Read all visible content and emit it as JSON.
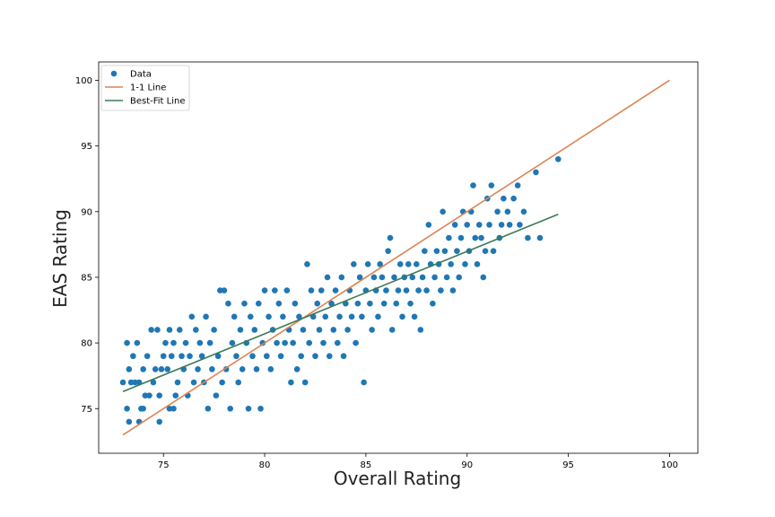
{
  "chart_data": {
    "type": "scatter",
    "xlabel": "Overall Rating",
    "ylabel": "EAS Rating",
    "xlim": [
      71.8,
      101.4
    ],
    "ylim": [
      71.6,
      101.4
    ],
    "xticks": [
      "75",
      "80",
      "85",
      "90",
      "95",
      "100"
    ],
    "yticks": [
      "75",
      "80",
      "85",
      "90",
      "95",
      "100"
    ],
    "grid": false,
    "legend_position": "top-left",
    "series": [
      {
        "name": "Data",
        "kind": "scatter",
        "color": "#1f77b4",
        "points": [
          [
            73.0,
            77
          ],
          [
            73.2,
            75
          ],
          [
            73.2,
            80
          ],
          [
            73.3,
            74
          ],
          [
            73.3,
            78
          ],
          [
            73.4,
            77
          ],
          [
            73.5,
            79
          ],
          [
            73.6,
            77
          ],
          [
            73.7,
            80
          ],
          [
            73.8,
            74
          ],
          [
            73.8,
            77
          ],
          [
            73.9,
            75
          ],
          [
            74.0,
            75
          ],
          [
            74.0,
            78
          ],
          [
            74.1,
            76
          ],
          [
            74.2,
            79
          ],
          [
            74.3,
            76
          ],
          [
            74.4,
            81
          ],
          [
            74.5,
            77
          ],
          [
            74.6,
            78
          ],
          [
            74.7,
            81
          ],
          [
            74.8,
            74
          ],
          [
            74.8,
            76
          ],
          [
            74.9,
            78
          ],
          [
            75.0,
            79
          ],
          [
            75.1,
            80
          ],
          [
            75.2,
            78
          ],
          [
            75.3,
            75
          ],
          [
            75.3,
            81
          ],
          [
            75.4,
            79
          ],
          [
            75.5,
            75
          ],
          [
            75.5,
            80
          ],
          [
            75.6,
            76
          ],
          [
            75.7,
            77
          ],
          [
            75.8,
            81
          ],
          [
            75.9,
            79
          ],
          [
            76.0,
            78
          ],
          [
            76.1,
            80
          ],
          [
            76.2,
            76
          ],
          [
            76.3,
            79
          ],
          [
            76.4,
            82
          ],
          [
            76.5,
            77
          ],
          [
            76.6,
            81
          ],
          [
            76.7,
            78
          ],
          [
            76.8,
            80
          ],
          [
            76.9,
            79
          ],
          [
            77.0,
            77
          ],
          [
            77.1,
            82
          ],
          [
            77.2,
            75
          ],
          [
            77.3,
            80
          ],
          [
            77.4,
            78
          ],
          [
            77.5,
            81
          ],
          [
            77.6,
            76
          ],
          [
            77.7,
            79
          ],
          [
            77.8,
            84
          ],
          [
            77.9,
            77
          ],
          [
            78.0,
            84
          ],
          [
            78.1,
            78
          ],
          [
            78.2,
            83
          ],
          [
            78.3,
            75
          ],
          [
            78.4,
            80
          ],
          [
            78.5,
            82
          ],
          [
            78.6,
            79
          ],
          [
            78.7,
            77
          ],
          [
            78.8,
            81
          ],
          [
            78.9,
            78
          ],
          [
            79.0,
            83
          ],
          [
            79.1,
            80
          ],
          [
            79.2,
            75
          ],
          [
            79.3,
            82
          ],
          [
            79.4,
            79
          ],
          [
            79.5,
            81
          ],
          [
            79.6,
            78
          ],
          [
            79.7,
            83
          ],
          [
            79.8,
            75
          ],
          [
            79.9,
            80
          ],
          [
            80.0,
            84
          ],
          [
            80.1,
            79
          ],
          [
            80.2,
            82
          ],
          [
            80.3,
            78
          ],
          [
            80.4,
            81
          ],
          [
            80.5,
            84
          ],
          [
            80.6,
            80
          ],
          [
            80.7,
            83
          ],
          [
            80.8,
            79
          ],
          [
            80.9,
            82
          ],
          [
            81.0,
            80
          ],
          [
            81.1,
            84
          ],
          [
            81.2,
            81
          ],
          [
            81.3,
            77
          ],
          [
            81.4,
            80
          ],
          [
            81.5,
            83
          ],
          [
            81.6,
            78
          ],
          [
            81.7,
            82
          ],
          [
            81.8,
            79
          ],
          [
            81.9,
            81
          ],
          [
            82.0,
            77
          ],
          [
            82.1,
            86
          ],
          [
            82.2,
            80
          ],
          [
            82.3,
            84
          ],
          [
            82.4,
            82
          ],
          [
            82.5,
            79
          ],
          [
            82.6,
            83
          ],
          [
            82.7,
            81
          ],
          [
            82.8,
            84
          ],
          [
            82.9,
            80
          ],
          [
            83.0,
            82
          ],
          [
            83.1,
            85
          ],
          [
            83.2,
            79
          ],
          [
            83.3,
            83
          ],
          [
            83.4,
            81
          ],
          [
            83.5,
            84
          ],
          [
            83.6,
            80
          ],
          [
            83.7,
            82
          ],
          [
            83.8,
            85
          ],
          [
            83.9,
            79
          ],
          [
            84.0,
            83
          ],
          [
            84.1,
            81
          ],
          [
            84.2,
            84
          ],
          [
            84.3,
            82
          ],
          [
            84.4,
            86
          ],
          [
            84.5,
            80
          ],
          [
            84.6,
            83
          ],
          [
            84.7,
            85
          ],
          [
            84.8,
            82
          ],
          [
            84.9,
            77
          ],
          [
            85.0,
            84
          ],
          [
            85.1,
            86
          ],
          [
            85.2,
            83
          ],
          [
            85.3,
            81
          ],
          [
            85.4,
            85
          ],
          [
            85.5,
            84
          ],
          [
            85.6,
            82
          ],
          [
            85.7,
            86
          ],
          [
            85.8,
            85
          ],
          [
            85.9,
            83
          ],
          [
            86.0,
            84
          ],
          [
            86.1,
            87
          ],
          [
            86.2,
            88
          ],
          [
            86.3,
            81
          ],
          [
            86.4,
            85
          ],
          [
            86.5,
            83
          ],
          [
            86.6,
            84
          ],
          [
            86.7,
            86
          ],
          [
            86.8,
            82
          ],
          [
            86.9,
            85
          ],
          [
            87.0,
            84
          ],
          [
            87.1,
            86
          ],
          [
            87.2,
            83
          ],
          [
            87.3,
            85
          ],
          [
            87.4,
            82
          ],
          [
            87.5,
            86
          ],
          [
            87.6,
            84
          ],
          [
            87.7,
            81
          ],
          [
            87.8,
            85
          ],
          [
            87.9,
            87
          ],
          [
            88.0,
            84
          ],
          [
            88.1,
            89
          ],
          [
            88.2,
            86
          ],
          [
            88.3,
            83
          ],
          [
            88.4,
            85
          ],
          [
            88.5,
            87
          ],
          [
            88.6,
            86
          ],
          [
            88.7,
            84
          ],
          [
            88.8,
            90
          ],
          [
            88.9,
            87
          ],
          [
            89.0,
            85
          ],
          [
            89.1,
            88
          ],
          [
            89.2,
            86
          ],
          [
            89.3,
            84
          ],
          [
            89.4,
            89
          ],
          [
            89.5,
            87
          ],
          [
            89.6,
            85
          ],
          [
            89.7,
            88
          ],
          [
            89.8,
            90
          ],
          [
            89.9,
            86
          ],
          [
            90.0,
            89
          ],
          [
            90.1,
            87
          ],
          [
            90.2,
            90
          ],
          [
            90.3,
            92
          ],
          [
            90.4,
            88
          ],
          [
            90.5,
            86
          ],
          [
            90.6,
            89
          ],
          [
            90.7,
            88
          ],
          [
            90.8,
            85
          ],
          [
            90.9,
            87
          ],
          [
            91.0,
            91
          ],
          [
            91.1,
            89
          ],
          [
            91.2,
            92
          ],
          [
            91.3,
            87
          ],
          [
            91.5,
            90
          ],
          [
            91.6,
            88
          ],
          [
            91.7,
            89
          ],
          [
            91.8,
            91
          ],
          [
            92.0,
            90
          ],
          [
            92.1,
            89
          ],
          [
            92.3,
            91
          ],
          [
            92.5,
            92
          ],
          [
            92.6,
            89
          ],
          [
            92.8,
            90
          ],
          [
            93.0,
            88
          ],
          [
            93.4,
            93
          ],
          [
            93.6,
            88
          ],
          [
            94.5,
            94
          ]
        ]
      },
      {
        "name": "1-1 Line",
        "kind": "line",
        "color": "#dd8452",
        "x": [
          73.0,
          100.0
        ],
        "y": [
          73.0,
          100.0
        ]
      },
      {
        "name": "Best-Fit Line",
        "kind": "line",
        "color": "#3a7a55",
        "x": [
          73.0,
          94.5
        ],
        "y": [
          76.3,
          89.8
        ]
      }
    ]
  }
}
